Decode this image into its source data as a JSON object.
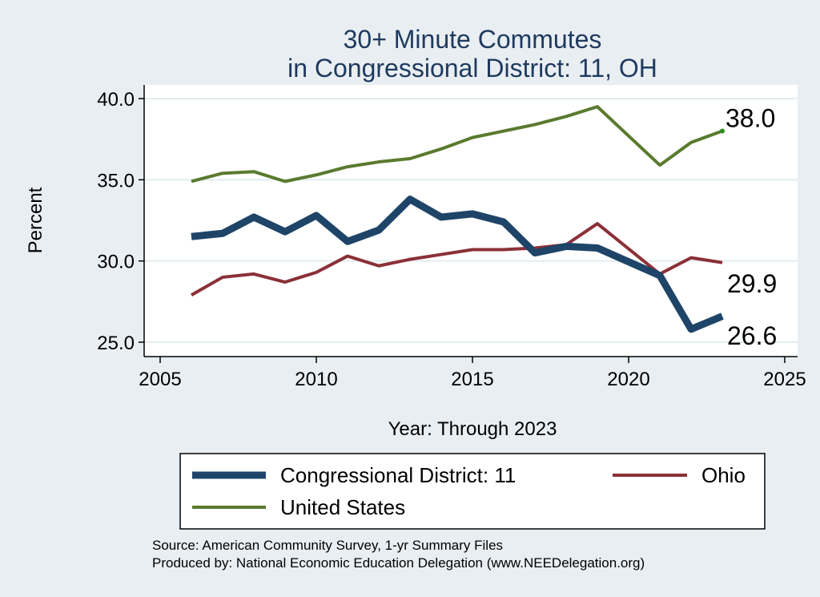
{
  "chart_data": {
    "type": "line",
    "title": [
      "30+ Minute Commutes",
      "in Congressional District:  11, OH"
    ],
    "xlabel": "Year: Through 2023",
    "ylabel": "Percent",
    "xlim": [
      2005,
      2025
    ],
    "ylim": [
      25,
      40
    ],
    "xticks": [
      2005,
      2010,
      2015,
      2020,
      2025
    ],
    "yticks": [
      25,
      30,
      35,
      40
    ],
    "ytick_labels": [
      "25.0",
      "30.0",
      "35.0",
      "40.0"
    ],
    "grid": "horizontal",
    "legend_position": "bottom",
    "x": [
      2006,
      2007,
      2008,
      2009,
      2010,
      2011,
      2012,
      2013,
      2014,
      2015,
      2016,
      2017,
      2018,
      2019,
      2021,
      2022,
      2023
    ],
    "series": [
      {
        "name": "Congressional District:  11",
        "color": "#1e4468",
        "values": [
          31.5,
          31.7,
          32.7,
          31.8,
          32.8,
          31.2,
          31.9,
          33.8,
          32.7,
          32.9,
          32.4,
          30.5,
          30.9,
          30.8,
          29.1,
          25.8,
          26.6
        ],
        "end_label": "26.6"
      },
      {
        "name": "Ohio",
        "color": "#8b3038",
        "values": [
          27.9,
          29.0,
          29.2,
          28.7,
          29.3,
          30.3,
          29.7,
          30.1,
          30.4,
          30.7,
          30.7,
          30.8,
          31.0,
          32.3,
          29.2,
          30.2,
          29.9
        ],
        "end_label": "29.9"
      },
      {
        "name": "United States",
        "color": "#5a7a2e",
        "values": [
          34.9,
          35.4,
          35.5,
          34.9,
          35.3,
          35.8,
          36.1,
          36.3,
          36.9,
          37.6,
          38.0,
          38.4,
          38.9,
          39.5,
          35.9,
          37.3,
          38.0
        ],
        "end_label": "38.0"
      }
    ],
    "source_lines": [
      "Source: American Community Survey, 1-yr Summary Files",
      "Produced by: National Economic Education Delegation (www.NEEDelegation.org)"
    ]
  }
}
